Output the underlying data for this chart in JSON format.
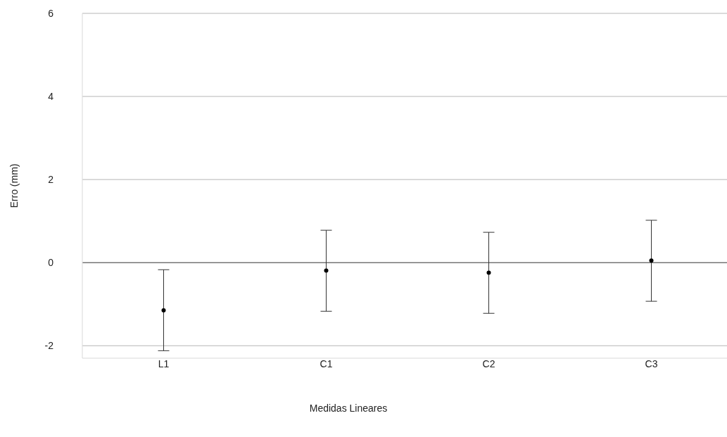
{
  "chart_data": {
    "type": "scatter",
    "xlabel": "Medidas Lineares",
    "ylabel": "Erro (mm)",
    "categories": [
      "L1",
      "C1",
      "C2",
      "C3"
    ],
    "values": [
      -1.15,
      -0.19,
      -0.24,
      0.05
    ],
    "errors": [
      [
        -2.12,
        -0.17
      ],
      [
        -1.17,
        0.78
      ],
      [
        -1.22,
        0.73
      ],
      [
        -0.93,
        1.02
      ]
    ],
    "color": "#000000",
    "marker": "circle",
    "ylim": [
      -2.3,
      6
    ],
    "yticks": [
      -2,
      0,
      2,
      4,
      6
    ],
    "grid": "y"
  }
}
